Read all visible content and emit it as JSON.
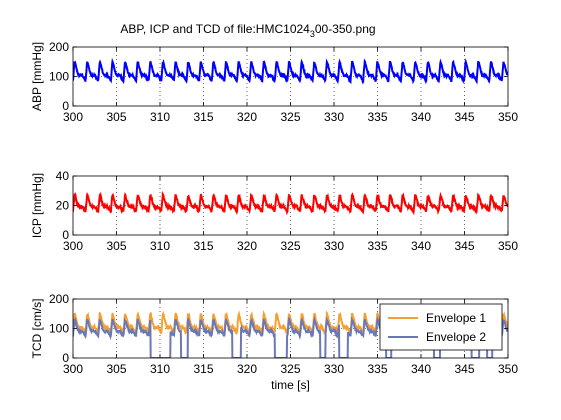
{
  "figure": {
    "title_main": "ABP, ICP and TCD of file:HMC1024",
    "title_sub": "3",
    "title_tail": "00-350.png"
  },
  "chart_data": [
    {
      "type": "line",
      "ylabel": "ABP [mmHg]",
      "xlabel": "",
      "xlim": [
        300,
        350
      ],
      "ylim": [
        0,
        200
      ],
      "xticks": [
        300,
        305,
        310,
        315,
        320,
        325,
        330,
        335,
        340,
        345,
        350
      ],
      "yticks": [
        0,
        100,
        200
      ],
      "grid": true,
      "waveform": {
        "period_s": 1.45,
        "min": 85,
        "max": 150,
        "noise": 6
      },
      "series": [
        {
          "color": "#0000ff"
        }
      ]
    },
    {
      "type": "line",
      "ylabel": "ICP [mmHg]",
      "xlabel": "",
      "xlim": [
        300,
        350
      ],
      "ylim": [
        0,
        40
      ],
      "xticks": [
        300,
        305,
        310,
        315,
        320,
        325,
        330,
        335,
        340,
        345,
        350
      ],
      "yticks": [
        0,
        20,
        40
      ],
      "grid": true,
      "waveform": {
        "period_s": 1.45,
        "min": 16,
        "max": 27,
        "noise": 1.5
      },
      "series": [
        {
          "color": "#ff0000"
        }
      ]
    },
    {
      "type": "line",
      "ylabel": "TCD [cm/s]",
      "xlabel": "time [s]",
      "xlim": [
        300,
        350
      ],
      "ylim": [
        0,
        200
      ],
      "xticks": [
        300,
        305,
        310,
        315,
        320,
        325,
        330,
        335,
        340,
        345,
        350
      ],
      "yticks": [
        0,
        100,
        200
      ],
      "grid": true,
      "legend": "top-right",
      "series": [
        {
          "name": "Envelope 1",
          "color": "#f5a033",
          "waveform": {
            "period_s": 1.45,
            "min": 85,
            "max": 150,
            "noise": 8
          }
        },
        {
          "name": "Envelope 2",
          "color": "#6b78b8",
          "waveform": {
            "period_s": 1.45,
            "min": 75,
            "max": 130,
            "noise": 6
          },
          "dropouts": [
            [
              308.9,
              311.2
            ],
            [
              312.4,
              313.2
            ],
            [
              318.3,
              319.3
            ],
            [
              323.2,
              324.6
            ],
            [
              328.4,
              329.0
            ],
            [
              330.6,
              331.6
            ],
            [
              336.0,
              336.6
            ],
            [
              341.5,
              342.2
            ],
            [
              345.8,
              346.7
            ],
            [
              347.6,
              348.2
            ]
          ]
        }
      ]
    }
  ]
}
